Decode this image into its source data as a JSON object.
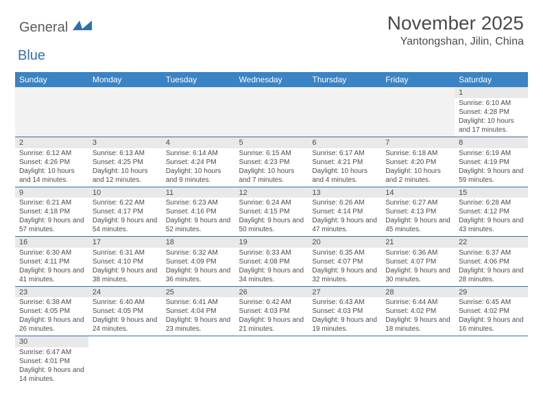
{
  "logo": {
    "text1": "General",
    "text2": "Blue"
  },
  "title": "November 2025",
  "location": "Yantongshan, Jilin, China",
  "colors": {
    "header_bg": "#3a83c4",
    "daynum_bg": "#e9e9e9",
    "blank_bg": "#f2f2f2",
    "divider": "#2f6fb0",
    "logo_gray": "#5a5a5a",
    "logo_blue": "#2f6fb0",
    "text": "#4a4a4a"
  },
  "weekdays": [
    "Sunday",
    "Monday",
    "Tuesday",
    "Wednesday",
    "Thursday",
    "Friday",
    "Saturday"
  ],
  "weeks": [
    {
      "nums": [
        "",
        "",
        "",
        "",
        "",
        "",
        "1"
      ],
      "details": [
        "",
        "",
        "",
        "",
        "",
        "",
        "Sunrise: 6:10 AM\nSunset: 4:28 PM\nDaylight: 10 hours and 17 minutes."
      ]
    },
    {
      "nums": [
        "2",
        "3",
        "4",
        "5",
        "6",
        "7",
        "8"
      ],
      "details": [
        "Sunrise: 6:12 AM\nSunset: 4:26 PM\nDaylight: 10 hours and 14 minutes.",
        "Sunrise: 6:13 AM\nSunset: 4:25 PM\nDaylight: 10 hours and 12 minutes.",
        "Sunrise: 6:14 AM\nSunset: 4:24 PM\nDaylight: 10 hours and 9 minutes.",
        "Sunrise: 6:15 AM\nSunset: 4:23 PM\nDaylight: 10 hours and 7 minutes.",
        "Sunrise: 6:17 AM\nSunset: 4:21 PM\nDaylight: 10 hours and 4 minutes.",
        "Sunrise: 6:18 AM\nSunset: 4:20 PM\nDaylight: 10 hours and 2 minutes.",
        "Sunrise: 6:19 AM\nSunset: 4:19 PM\nDaylight: 9 hours and 59 minutes."
      ]
    },
    {
      "nums": [
        "9",
        "10",
        "11",
        "12",
        "13",
        "14",
        "15"
      ],
      "details": [
        "Sunrise: 6:21 AM\nSunset: 4:18 PM\nDaylight: 9 hours and 57 minutes.",
        "Sunrise: 6:22 AM\nSunset: 4:17 PM\nDaylight: 9 hours and 54 minutes.",
        "Sunrise: 6:23 AM\nSunset: 4:16 PM\nDaylight: 9 hours and 52 minutes.",
        "Sunrise: 6:24 AM\nSunset: 4:15 PM\nDaylight: 9 hours and 50 minutes.",
        "Sunrise: 6:26 AM\nSunset: 4:14 PM\nDaylight: 9 hours and 47 minutes.",
        "Sunrise: 6:27 AM\nSunset: 4:13 PM\nDaylight: 9 hours and 45 minutes.",
        "Sunrise: 6:28 AM\nSunset: 4:12 PM\nDaylight: 9 hours and 43 minutes."
      ]
    },
    {
      "nums": [
        "16",
        "17",
        "18",
        "19",
        "20",
        "21",
        "22"
      ],
      "details": [
        "Sunrise: 6:30 AM\nSunset: 4:11 PM\nDaylight: 9 hours and 41 minutes.",
        "Sunrise: 6:31 AM\nSunset: 4:10 PM\nDaylight: 9 hours and 38 minutes.",
        "Sunrise: 6:32 AM\nSunset: 4:09 PM\nDaylight: 9 hours and 36 minutes.",
        "Sunrise: 6:33 AM\nSunset: 4:08 PM\nDaylight: 9 hours and 34 minutes.",
        "Sunrise: 6:35 AM\nSunset: 4:07 PM\nDaylight: 9 hours and 32 minutes.",
        "Sunrise: 6:36 AM\nSunset: 4:07 PM\nDaylight: 9 hours and 30 minutes.",
        "Sunrise: 6:37 AM\nSunset: 4:06 PM\nDaylight: 9 hours and 28 minutes."
      ]
    },
    {
      "nums": [
        "23",
        "24",
        "25",
        "26",
        "27",
        "28",
        "29"
      ],
      "details": [
        "Sunrise: 6:38 AM\nSunset: 4:05 PM\nDaylight: 9 hours and 26 minutes.",
        "Sunrise: 6:40 AM\nSunset: 4:05 PM\nDaylight: 9 hours and 24 minutes.",
        "Sunrise: 6:41 AM\nSunset: 4:04 PM\nDaylight: 9 hours and 23 minutes.",
        "Sunrise: 6:42 AM\nSunset: 4:03 PM\nDaylight: 9 hours and 21 minutes.",
        "Sunrise: 6:43 AM\nSunset: 4:03 PM\nDaylight: 9 hours and 19 minutes.",
        "Sunrise: 6:44 AM\nSunset: 4:02 PM\nDaylight: 9 hours and 18 minutes.",
        "Sunrise: 6:45 AM\nSunset: 4:02 PM\nDaylight: 9 hours and 16 minutes."
      ]
    },
    {
      "nums": [
        "30",
        "",
        "",
        "",
        "",
        "",
        ""
      ],
      "details": [
        "Sunrise: 6:47 AM\nSunset: 4:01 PM\nDaylight: 9 hours and 14 minutes.",
        "",
        "",
        "",
        "",
        "",
        ""
      ]
    }
  ]
}
